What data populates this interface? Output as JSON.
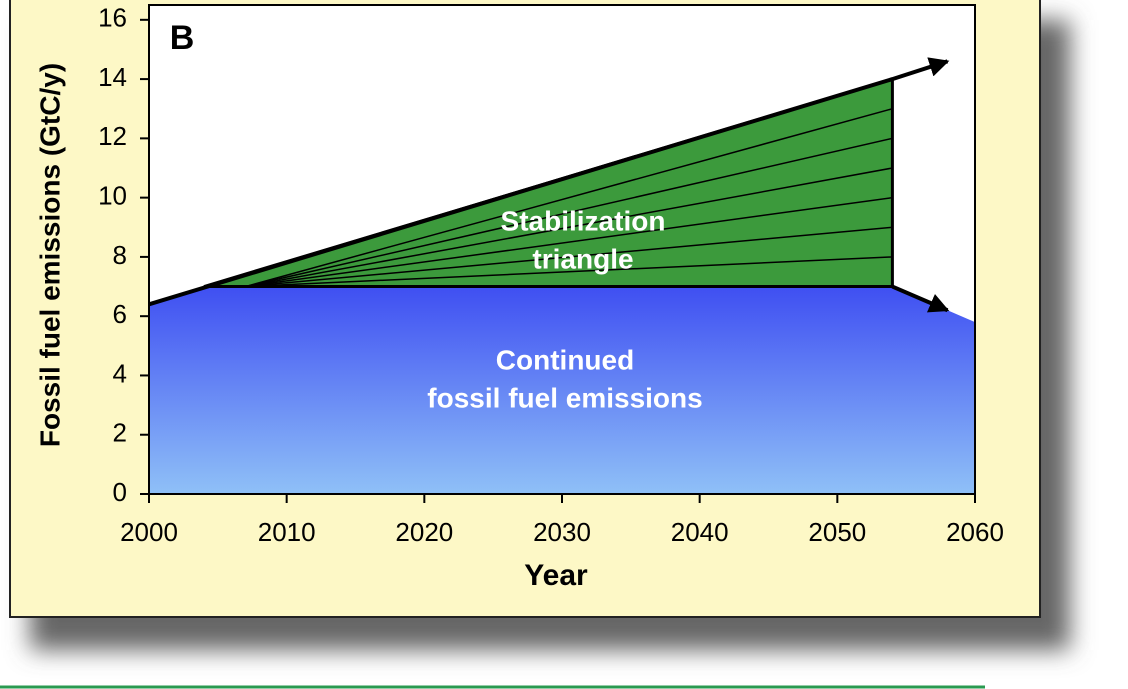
{
  "chart_data": {
    "type": "area",
    "panel_label": "B",
    "xlabel": "Year",
    "ylabel": "Fossil fuel emissions (GtC/y)",
    "xlim": [
      2000,
      2060
    ],
    "ylim": [
      0,
      16.5
    ],
    "xticks": [
      2000,
      2010,
      2020,
      2030,
      2040,
      2050,
      2060
    ],
    "yticks": [
      0,
      2,
      4,
      6,
      8,
      10,
      12,
      14,
      16
    ],
    "series": [
      {
        "label": [
          "Continued",
          "fossil fuel emissions"
        ],
        "x": [
          2000,
          2004,
          2054,
          2060
        ],
        "values": [
          6.4,
          7,
          7,
          5.8
        ],
        "color": "#3f4ff2",
        "color2": "#8fc0f7"
      },
      {
        "label": [
          "Stabilization",
          "triangle"
        ],
        "x": [
          2004,
          2054,
          2054
        ],
        "values": [
          7,
          7,
          14
        ],
        "color": "#3c9a3c",
        "wedge_apex": {
          "x": 2007,
          "value": 7
        },
        "wedge_ends": [
          8,
          9,
          10,
          11,
          12,
          13
        ]
      }
    ],
    "lines": [
      {
        "x": [
          2000,
          2054
        ],
        "values": [
          6.4,
          14
        ]
      },
      {
        "x": [
          2054,
          2058
        ],
        "values": [
          14,
          14.6
        ]
      },
      {
        "x": [
          2054,
          2058
        ],
        "values": [
          7,
          6.2
        ]
      }
    ]
  }
}
